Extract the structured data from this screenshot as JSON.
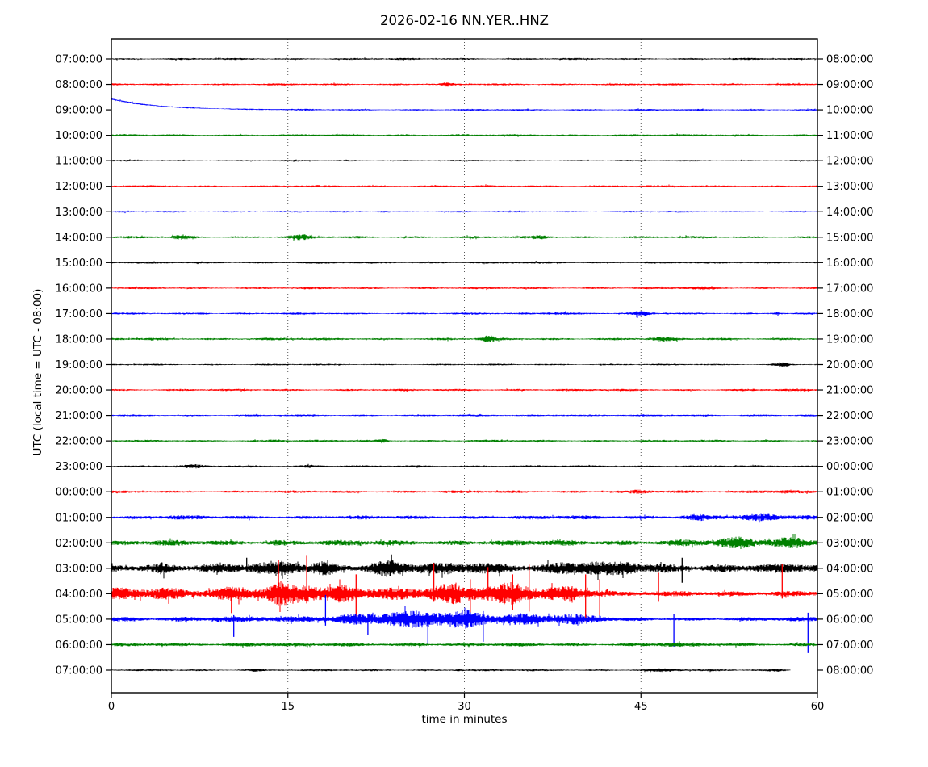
{
  "title": "2026-02-16 NN.YER..HNZ",
  "chart_data": {
    "type": "line",
    "subtype": "helicorder_dayplot",
    "title": "2026-02-16 NN.YER..HNZ",
    "xlabel": "time in minutes",
    "ylabel": "UTC (local time = UTC - 08:00)",
    "station": "NN.YER..HNZ",
    "date": "2026-02-16",
    "xlim": [
      0,
      60
    ],
    "x_ticks": [
      "0",
      "15",
      "30",
      "45",
      "60"
    ],
    "grid": {
      "vertical_dotted_at": [
        15,
        30,
        45
      ]
    },
    "minutes_per_row": 60,
    "legend": "none",
    "axis_color": "#000000",
    "background": "#ffffff",
    "color_cycle": [
      "#000000",
      "#ff0000",
      "#0000ff",
      "#008000"
    ],
    "rows": [
      {
        "left": "07:00:00",
        "right": "08:00:00",
        "color": "#000000",
        "env": [
          [
            0,
            1.3
          ],
          [
            60,
            1.3
          ]
        ],
        "bursts": [],
        "spikes": []
      },
      {
        "left": "08:00:00",
        "right": "09:00:00",
        "color": "#ff0000",
        "env": [
          [
            0,
            1.4
          ],
          [
            60,
            1.4
          ]
        ],
        "bursts": [
          {
            "m": 28.5,
            "w": 0.4,
            "a": 1.5
          }
        ],
        "spikes": []
      },
      {
        "left": "09:00:00",
        "right": "10:00:00",
        "color": "#0000ff",
        "env": [
          [
            0,
            1.1
          ],
          [
            60,
            1.2
          ]
        ],
        "bursts": [],
        "spikes": [],
        "settle": {
          "a": -13.5,
          "tau": 4.0
        }
      },
      {
        "left": "10:00:00",
        "right": "11:00:00",
        "color": "#008000",
        "env": [
          [
            0,
            1.5
          ],
          [
            60,
            1.5
          ]
        ],
        "bursts": [],
        "spikes": []
      },
      {
        "left": "11:00:00",
        "right": "12:00:00",
        "color": "#000000",
        "env": [
          [
            0,
            1.1
          ],
          [
            60,
            1.1
          ]
        ],
        "bursts": [],
        "spikes": []
      },
      {
        "left": "12:00:00",
        "right": "13:00:00",
        "color": "#ff0000",
        "env": [
          [
            0,
            1.4
          ],
          [
            60,
            1.4
          ]
        ],
        "bursts": [],
        "spikes": []
      },
      {
        "left": "13:00:00",
        "right": "14:00:00",
        "color": "#0000ff",
        "env": [
          [
            0,
            1.1
          ],
          [
            60,
            1.1
          ]
        ],
        "bursts": [
          {
            "m": 23,
            "w": 0.5,
            "a": 1.2
          }
        ],
        "spikes": []
      },
      {
        "left": "14:00:00",
        "right": "15:00:00",
        "color": "#008000",
        "env": [
          [
            0,
            1.6
          ],
          [
            60,
            1.6
          ]
        ],
        "bursts": [
          {
            "m": 6,
            "w": 0.8,
            "a": 2.2
          },
          {
            "m": 16,
            "w": 1.0,
            "a": 2.2
          },
          {
            "m": 36.5,
            "w": 0.8,
            "a": 2.0
          }
        ],
        "spikes": []
      },
      {
        "left": "15:00:00",
        "right": "16:00:00",
        "color": "#000000",
        "env": [
          [
            0,
            1.4
          ],
          [
            60,
            1.4
          ]
        ],
        "bursts": [],
        "spikes": []
      },
      {
        "left": "16:00:00",
        "right": "17:00:00",
        "color": "#ff0000",
        "env": [
          [
            0,
            1.4
          ],
          [
            60,
            1.4
          ]
        ],
        "bursts": [
          {
            "m": 50,
            "w": 1.5,
            "a": 1.0
          }
        ],
        "spikes": []
      },
      {
        "left": "17:00:00",
        "right": "18:00:00",
        "color": "#0000ff",
        "env": [
          [
            0,
            1.3
          ],
          [
            60,
            1.3
          ]
        ],
        "bursts": [
          {
            "m": 8,
            "w": 0.5,
            "a": 1.5
          },
          {
            "m": 38,
            "w": 1.2,
            "a": 2.8
          },
          {
            "m": 45,
            "w": 0.7,
            "a": 2.2
          },
          {
            "m": 56.5,
            "w": 0.5,
            "a": 2.6
          }
        ],
        "spikes": []
      },
      {
        "left": "18:00:00",
        "right": "19:00:00",
        "color": "#008000",
        "env": [
          [
            0,
            1.7
          ],
          [
            60,
            1.7
          ]
        ],
        "bursts": [
          {
            "m": 32,
            "w": 0.6,
            "a": 3.2
          },
          {
            "m": 47,
            "w": 1.0,
            "a": 1.5
          }
        ],
        "spikes": []
      },
      {
        "left": "19:00:00",
        "right": "20:00:00",
        "color": "#000000",
        "env": [
          [
            0,
            1.1
          ],
          [
            60,
            1.1
          ]
        ],
        "bursts": [
          {
            "m": 57,
            "w": 0.7,
            "a": 2.8
          }
        ],
        "spikes": []
      },
      {
        "left": "20:00:00",
        "right": "21:00:00",
        "color": "#ff0000",
        "env": [
          [
            0,
            1.5
          ],
          [
            60,
            1.5
          ]
        ],
        "bursts": [],
        "spikes": []
      },
      {
        "left": "21:00:00",
        "right": "22:00:00",
        "color": "#0000ff",
        "env": [
          [
            0,
            1.2
          ],
          [
            60,
            1.2
          ]
        ],
        "bursts": [
          {
            "m": 38,
            "w": 0.8,
            "a": 1.2
          }
        ],
        "spikes": []
      },
      {
        "left": "22:00:00",
        "right": "23:00:00",
        "color": "#008000",
        "env": [
          [
            0,
            1.5
          ],
          [
            60,
            1.5
          ]
        ],
        "bursts": [
          {
            "m": 14,
            "w": 0.6,
            "a": 1.5
          },
          {
            "m": 23,
            "w": 0.5,
            "a": 1.8
          }
        ],
        "spikes": []
      },
      {
        "left": "23:00:00",
        "right": "00:00:00",
        "color": "#000000",
        "env": [
          [
            0,
            1.4
          ],
          [
            60,
            1.4
          ]
        ],
        "bursts": [
          {
            "m": 7,
            "w": 0.7,
            "a": 1.5
          },
          {
            "m": 17,
            "w": 0.7,
            "a": 1.3
          }
        ],
        "spikes": []
      },
      {
        "left": "00:00:00",
        "right": "01:00:00",
        "color": "#ff0000",
        "env": [
          [
            0,
            1.7
          ],
          [
            60,
            1.9
          ]
        ],
        "bursts": [
          {
            "m": 45,
            "w": 0.8,
            "a": 1.2
          },
          {
            "m": 56,
            "w": 1.5,
            "a": 2.2
          }
        ],
        "spikes": []
      },
      {
        "left": "01:00:00",
        "right": "02:00:00",
        "color": "#0000ff",
        "env": [
          [
            0,
            2.4
          ],
          [
            40,
            2.6
          ],
          [
            50,
            3.2
          ],
          [
            60,
            3.8
          ]
        ],
        "bursts": [
          {
            "m": 5,
            "w": 1,
            "a": 1.0
          },
          {
            "m": 50,
            "w": 1.2,
            "a": 1.5
          },
          {
            "m": 56,
            "w": 1.5,
            "a": 1.8
          }
        ],
        "spikes": []
      },
      {
        "left": "02:00:00",
        "right": "03:00:00",
        "color": "#008000",
        "env": [
          [
            0,
            3.4
          ],
          [
            45,
            3.8
          ],
          [
            52,
            5
          ],
          [
            60,
            6.5
          ]
        ],
        "bursts": [
          {
            "m": 14,
            "w": 1,
            "a": 1.5
          },
          {
            "m": 53.5,
            "w": 1.5,
            "a": 3
          },
          {
            "m": 57.5,
            "w": 1.5,
            "a": 3.5
          }
        ],
        "spikes": []
      },
      {
        "left": "03:00:00",
        "right": "04:00:00",
        "color": "#000000",
        "env": [
          [
            0,
            6
          ],
          [
            20,
            7
          ],
          [
            35,
            7
          ],
          [
            45,
            6.5
          ],
          [
            60,
            6
          ]
        ],
        "bursts": [
          {
            "m": 4.5,
            "w": 0.8,
            "a": 4
          },
          {
            "m": 15,
            "w": 2,
            "a": 4
          },
          {
            "m": 18,
            "w": 1,
            "a": 4
          },
          {
            "m": 23.5,
            "w": 1.5,
            "a": 5
          },
          {
            "m": 31,
            "w": 1.5,
            "a": 4
          },
          {
            "m": 40,
            "w": 2,
            "a": 5
          },
          {
            "m": 44,
            "w": 1,
            "a": 4
          }
        ],
        "spikes": [
          {
            "m": 11.5,
            "u": 13,
            "d": 4
          },
          {
            "m": 23.8,
            "u": 17,
            "d": 6
          },
          {
            "m": 48.5,
            "u": 13,
            "d": 18
          }
        ]
      },
      {
        "left": "04:00:00",
        "right": "05:00:00",
        "color": "#ff0000",
        "env": [
          [
            0,
            8
          ],
          [
            10,
            9
          ],
          [
            20,
            10
          ],
          [
            35,
            10
          ],
          [
            41,
            9
          ],
          [
            43,
            3
          ],
          [
            50,
            3.5
          ],
          [
            55,
            4.5
          ],
          [
            60,
            4
          ]
        ],
        "bursts": [
          {
            "m": 11,
            "w": 1.5,
            "a": 4
          },
          {
            "m": 14.5,
            "w": 1,
            "a": 6
          },
          {
            "m": 16.5,
            "w": 1,
            "a": 6
          },
          {
            "m": 21,
            "w": 1.5,
            "a": 4
          },
          {
            "m": 28,
            "w": 2,
            "a": 4
          },
          {
            "m": 34.5,
            "w": 2.5,
            "a": 5
          },
          {
            "m": 39,
            "w": 1.5,
            "a": 4
          }
        ],
        "spikes": [
          {
            "m": 10.2,
            "u": 6,
            "d": 24
          },
          {
            "m": 14.2,
            "u": 42,
            "d": 10
          },
          {
            "m": 16.6,
            "u": 47,
            "d": 12
          },
          {
            "m": 20.8,
            "u": 24,
            "d": 28
          },
          {
            "m": 27.4,
            "u": 38,
            "d": 10
          },
          {
            "m": 30.5,
            "u": 18,
            "d": 26
          },
          {
            "m": 32,
            "u": 33,
            "d": 8
          },
          {
            "m": 34.1,
            "u": 24,
            "d": 20
          },
          {
            "m": 35.5,
            "u": 36,
            "d": 22
          },
          {
            "m": 40.3,
            "u": 24,
            "d": 34
          },
          {
            "m": 41.5,
            "u": 18,
            "d": 28
          },
          {
            "m": 46.5,
            "u": 26,
            "d": 10
          },
          {
            "m": 57,
            "u": 37,
            "d": 6
          }
        ]
      },
      {
        "left": "05:00:00",
        "right": "06:00:00",
        "color": "#0000ff",
        "env": [
          [
            0,
            3.5
          ],
          [
            15,
            4
          ],
          [
            18,
            7
          ],
          [
            22,
            9
          ],
          [
            30,
            10
          ],
          [
            38,
            8
          ],
          [
            41,
            6
          ],
          [
            43,
            2.4
          ],
          [
            53,
            2.6
          ],
          [
            60,
            3
          ]
        ],
        "bursts": [
          {
            "m": 23,
            "w": 1.5,
            "a": 3
          },
          {
            "m": 27,
            "w": 1.5,
            "a": 3
          },
          {
            "m": 31,
            "w": 2,
            "a": 3
          },
          {
            "m": 36,
            "w": 1.5,
            "a": 2
          }
        ],
        "spikes": [
          {
            "m": 10.4,
            "u": 5,
            "d": 22
          },
          {
            "m": 18.2,
            "u": 30,
            "d": 8
          },
          {
            "m": 21.8,
            "u": 6,
            "d": 20
          },
          {
            "m": 26.9,
            "u": 8,
            "d": 32
          },
          {
            "m": 31.6,
            "u": 10,
            "d": 28
          },
          {
            "m": 47.8,
            "u": 6,
            "d": 34
          },
          {
            "m": 59.2,
            "u": 8,
            "d": 42
          }
        ]
      },
      {
        "left": "06:00:00",
        "right": "07:00:00",
        "color": "#008000",
        "env": [
          [
            0,
            2.2
          ],
          [
            60,
            2.4
          ]
        ],
        "bursts": [
          {
            "m": 12.5,
            "w": 1.5,
            "a": 2.2
          },
          {
            "m": 26.5,
            "w": 1.2,
            "a": 1.2
          },
          {
            "m": 47,
            "w": 1.2,
            "a": 1.2
          }
        ],
        "spikes": []
      },
      {
        "left": "07:00:00",
        "right": "08:00:00",
        "color": "#000000",
        "env": [
          [
            0,
            1.3
          ],
          [
            60,
            1.4
          ]
        ],
        "bursts": [
          {
            "m": 12,
            "w": 0.8,
            "a": 1.2
          },
          {
            "m": 29.5,
            "w": 0.4,
            "a": 1.5
          },
          {
            "m": 47,
            "w": 1.5,
            "a": 1.2
          },
          {
            "m": 56.5,
            "w": 0.8,
            "a": 1.8
          }
        ],
        "spikes": [],
        "end": 0.962
      }
    ]
  }
}
